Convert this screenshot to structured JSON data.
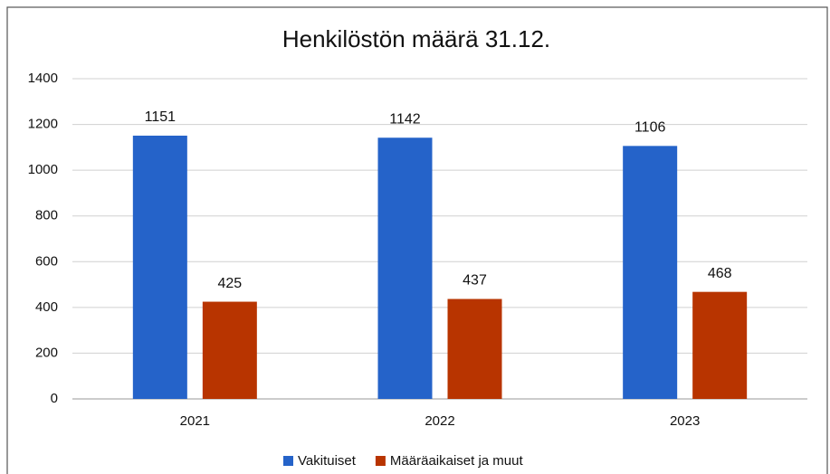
{
  "chart_data": {
    "type": "bar",
    "title": "Henkilöstön määrä 31.12.",
    "categories": [
      "2021",
      "2022",
      "2023"
    ],
    "series": [
      {
        "name": "Vakituiset",
        "color": "#2563c9",
        "values": [
          1151,
          1142,
          1106
        ]
      },
      {
        "name": "Määräaikaiset ja muut",
        "color": "#b83400",
        "values": [
          425,
          437,
          468
        ]
      }
    ],
    "ylim": [
      0,
      1400
    ],
    "yticks": [
      0,
      200,
      400,
      600,
      800,
      1000,
      1200,
      1400
    ],
    "grid": true,
    "legend": "bottom"
  }
}
